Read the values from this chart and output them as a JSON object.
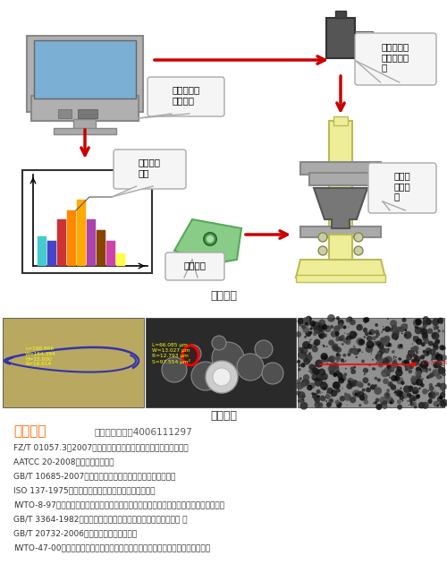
{
  "title_instrument": "仪器构造",
  "title_test": "试验图片",
  "standard_title": "适用标准",
  "standard_subtitle": "更多标准，咨询4006111297",
  "standards": [
    "FZ/T 01057.3－2007《纺织纤维鉴别实验方法第三部分显微镜法》",
    "AATCC 20-2008《纤维定性分析》",
    "GB/T 10685-2007《羊毛纤维直径试验方法一投影显微镜法》",
    "ISO 137-1975《羊毛一纤维直径测定一投影显微镜法》",
    "IWTO-8-97《显微投影仪测定羊毛纤维直径分布及羊毛和其他动物纤维髓化百分比的方法》",
    "GB/T 3364-1982《碳纤维直径和当量直径检验方法（显微镜法） 》",
    "GB/T 20732-2006《纤维直径光学分析仪》",
    "IWTO-47-00《光学纤维直径分析仪测定羊毛纤维平均直径及其分布的方法的规定》"
  ],
  "monitor_fc": "#aaaaaa",
  "screen_fc": "#6699cc",
  "camera_fc": "#555555",
  "microscope_fc": "#eeee99",
  "microscope_ec": "#bbbb55",
  "microscope_stage_fc": "#aaaaaa",
  "bar_colors": [
    "#44cccc",
    "#4444cc",
    "#cc3333",
    "#ff8800",
    "#ffaa00",
    "#aa44aa",
    "#884400",
    "#cc44aa",
    "#ffff44"
  ],
  "bar_heights": [
    35,
    30,
    55,
    65,
    78,
    55,
    42,
    30,
    15
  ],
  "sample_fc": "#88cc88",
  "arrow_color": "#cc0000",
  "callout_fc": "#f5f5f5",
  "callout_ec": "#aaaaaa",
  "bg_color": "#ffffff"
}
